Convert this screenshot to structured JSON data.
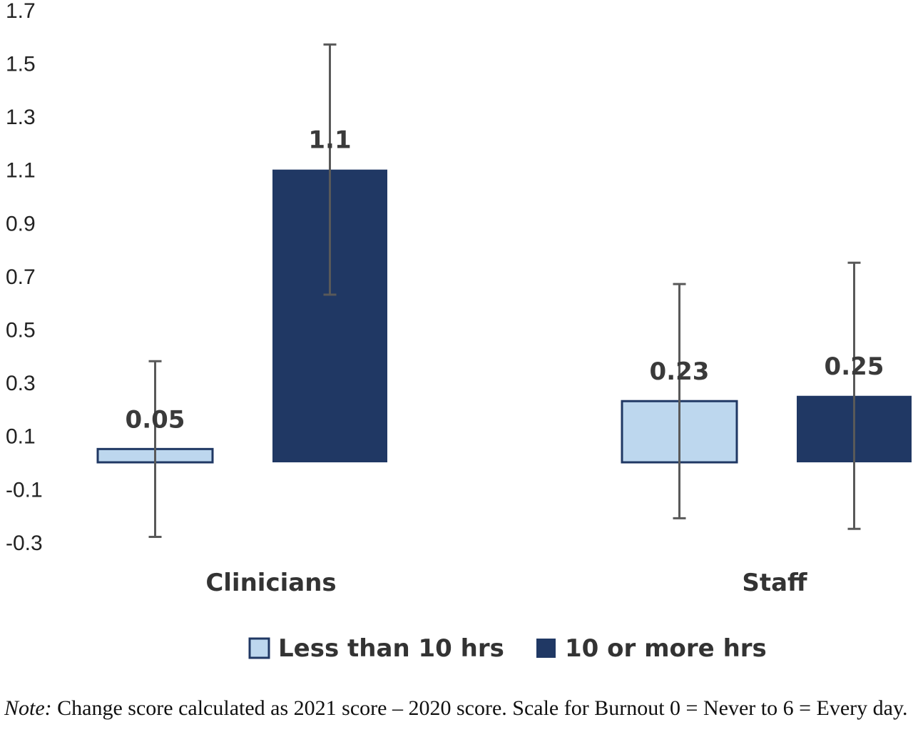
{
  "chart_data": {
    "type": "bar",
    "categories": [
      "Clinicians",
      "Staff"
    ],
    "series": [
      {
        "name": "Less than 10 hrs",
        "color": "#bdd7ee",
        "values": [
          0.05,
          0.23
        ],
        "error_low": [
          -0.28,
          -0.21
        ],
        "error_high": [
          0.38,
          0.67
        ]
      },
      {
        "name": "10 or more hrs",
        "color": "#203864",
        "values": [
          1.1,
          0.25
        ],
        "error_low": [
          0.63,
          -0.25
        ],
        "error_high": [
          1.57,
          0.75
        ]
      }
    ],
    "data_labels": [
      [
        "0.05",
        "1.1"
      ],
      [
        "0.23",
        "0.25"
      ]
    ],
    "y_ticks": [
      "1.7",
      "1.5",
      "1.3",
      "1.1",
      "0.9",
      "0.7",
      "0.5",
      "0.3",
      "0.1",
      "-0.1",
      "-0.3"
    ],
    "ylim": [
      -0.3,
      1.7
    ],
    "grid": false,
    "legend_position": "bottom",
    "title": "",
    "xlabel": "",
    "ylabel": ""
  },
  "note": {
    "label": "Note:",
    "text": " Change score calculated as 2021 score – 2020 score. Scale for Burnout 0 = Never to 6 = Every day."
  },
  "colors": {
    "light_bar_border": "#203864",
    "error_bar": "#595959"
  }
}
